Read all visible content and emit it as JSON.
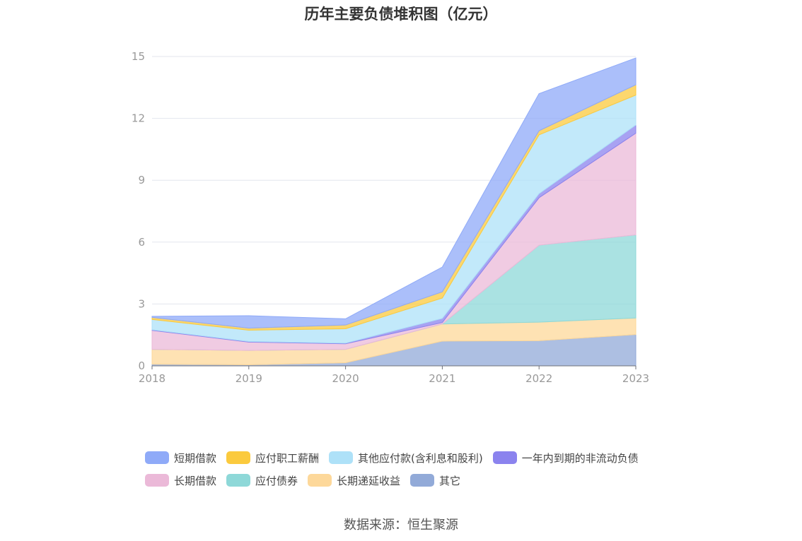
{
  "chart_data": {
    "type": "area",
    "title": "历年主要负债堆积图（亿元）",
    "x": [
      "2018",
      "2019",
      "2020",
      "2021",
      "2022",
      "2023"
    ],
    "ylim": [
      0,
      15
    ],
    "yticks": [
      "0",
      "3",
      "6",
      "9",
      "12",
      "15"
    ],
    "grid": true,
    "stacked": true,
    "legend_position": "bottom",
    "series": [
      {
        "name": "其它",
        "color": "#92aad8",
        "values": [
          0.08,
          0.05,
          0.15,
          1.2,
          1.22,
          1.52
        ]
      },
      {
        "name": "长期递延收益",
        "color": "#fdd89a",
        "values": [
          0.72,
          0.7,
          0.65,
          0.83,
          0.9,
          0.8
        ]
      },
      {
        "name": "应付债券",
        "color": "#8ed8d8",
        "values": [
          0,
          0,
          0,
          0,
          3.73,
          4.03
        ]
      },
      {
        "name": "长期借款",
        "color": "#ebb9d8",
        "values": [
          0.92,
          0.4,
          0.27,
          0.07,
          2.3,
          4.93
        ]
      },
      {
        "name": "一年内到期的非流动负债",
        "color": "#8b83ee",
        "values": [
          0.03,
          0.03,
          0.03,
          0.2,
          0.2,
          0.4
        ]
      },
      {
        "name": "其他应付款(含利息和股利)",
        "color": "#aee1f8",
        "values": [
          0.5,
          0.55,
          0.7,
          0.99,
          2.85,
          1.45
        ]
      },
      {
        "name": "应付职工薪酬",
        "color": "#fbca3e",
        "values": [
          0.1,
          0.1,
          0.18,
          0.3,
          0.2,
          0.5
        ]
      },
      {
        "name": "短期借款",
        "color": "#8faaf8",
        "values": [
          0.05,
          0.6,
          0.3,
          1.2,
          1.8,
          1.3
        ]
      }
    ]
  },
  "legend": [
    [
      {
        "label": "短期借款",
        "color": "#8faaf8"
      },
      {
        "label": "应付职工薪酬",
        "color": "#fbca3e"
      },
      {
        "label": "其他应付款(含利息和股利)",
        "color": "#aee1f8"
      },
      {
        "label": "一年内到期的非流动负债",
        "color": "#8b83ee"
      }
    ],
    [
      {
        "label": "长期借款",
        "color": "#ebb9d8"
      },
      {
        "label": "应付债券",
        "color": "#8ed8d8"
      },
      {
        "label": "长期递延收益",
        "color": "#fdd89a"
      },
      {
        "label": "其它",
        "color": "#92aad8"
      }
    ]
  ],
  "source": "数据来源：恒生聚源"
}
